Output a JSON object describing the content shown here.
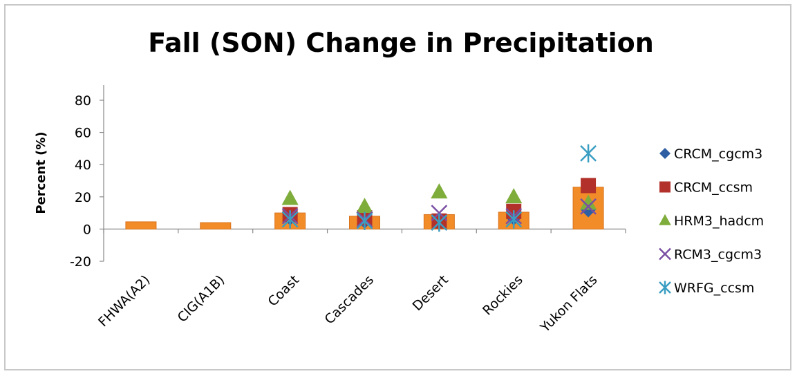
{
  "chart_data": {
    "type": "bar",
    "title": "Fall (SON) Change in Precipitation",
    "xlabel": "",
    "ylabel": "Percent (%)",
    "ylim": [
      -20,
      80
    ],
    "yticks": [
      -20,
      0,
      20,
      40,
      60,
      80
    ],
    "grid": false,
    "legend_position": "right",
    "categories": [
      "FHWA(A2)",
      "CIG(A1B)",
      "Coast",
      "Cascades",
      "Desert",
      "Rockies",
      "Yukon Flats"
    ],
    "bar_series": {
      "color": "#f28c28",
      "values": [
        4.5,
        4,
        10,
        8,
        9,
        10.5,
        26
      ]
    },
    "series": [
      {
        "name": "CRCM_cgcm3",
        "marker": "diamond",
        "color": "#2e5fa3",
        "values": [
          null,
          null,
          7,
          5,
          6,
          7,
          12
        ]
      },
      {
        "name": "CRCM_ccsm",
        "marker": "square",
        "color": "#b2312b",
        "values": [
          null,
          null,
          9,
          7,
          5,
          11,
          27
        ]
      },
      {
        "name": "HRM3_hadcm",
        "marker": "triangle",
        "color": "#7fad3b",
        "values": [
          null,
          null,
          19,
          14,
          23,
          20,
          16
        ]
      },
      {
        "name": "RCM3_cgcm3",
        "marker": "x",
        "color": "#7a4fa3",
        "values": [
          null,
          null,
          8,
          6,
          10,
          8,
          14
        ]
      },
      {
        "name": "WRFG_ccsm",
        "marker": "star",
        "color": "#3a9ec2",
        "values": [
          null,
          null,
          6,
          5,
          4,
          6,
          47
        ]
      }
    ]
  }
}
